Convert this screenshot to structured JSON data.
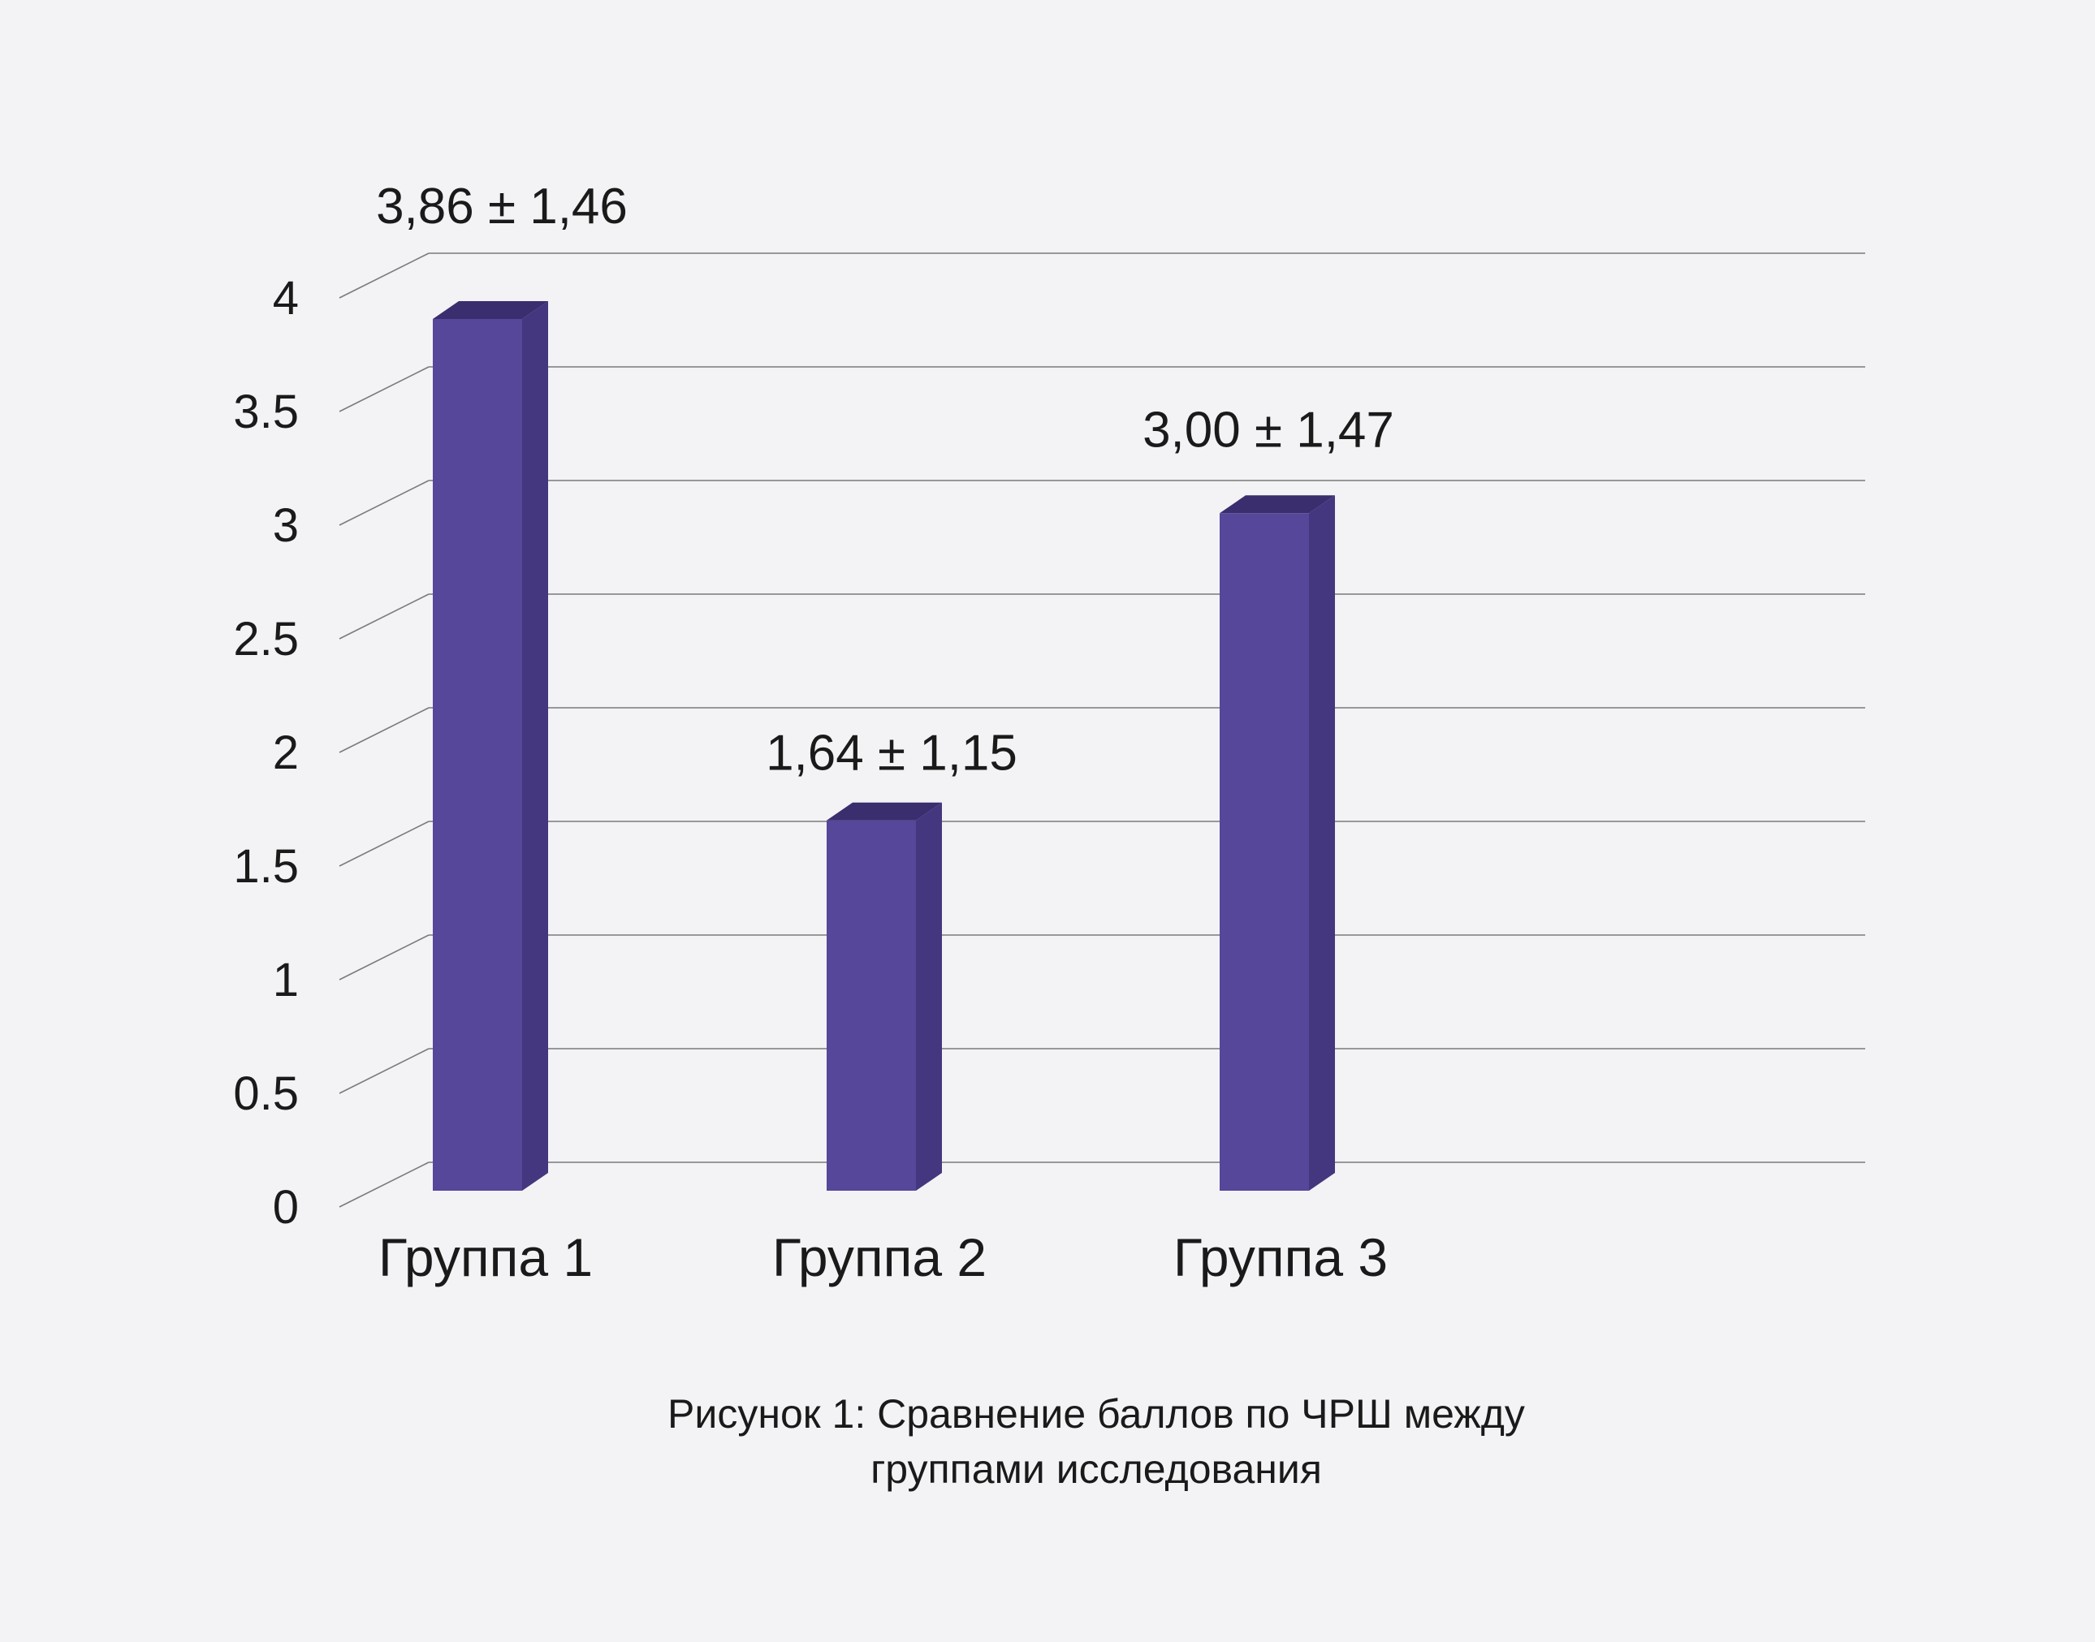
{
  "chart_data": {
    "type": "bar",
    "categories": [
      "Группа 1",
      "Группа 2",
      "Группа 3"
    ],
    "values": [
      3.86,
      1.64,
      3.0
    ],
    "data_labels": [
      "3,86 ± 1,46",
      "1,64 ± 1,15",
      "3,00 ± 1,47"
    ],
    "y_ticks": [
      "0",
      "0.5",
      "1",
      "1.5",
      "2",
      "2.5",
      "3",
      "3.5",
      "4"
    ],
    "ylim": [
      0,
      4
    ],
    "grid": true,
    "bar_color": "#56479a",
    "bar_side_color": "#44377f",
    "bar_top_color": "#3a2e6e"
  },
  "caption": {
    "line1": "Рисунок 1: Сравнение баллов по ЧРШ между",
    "line2": "группами исследования"
  }
}
